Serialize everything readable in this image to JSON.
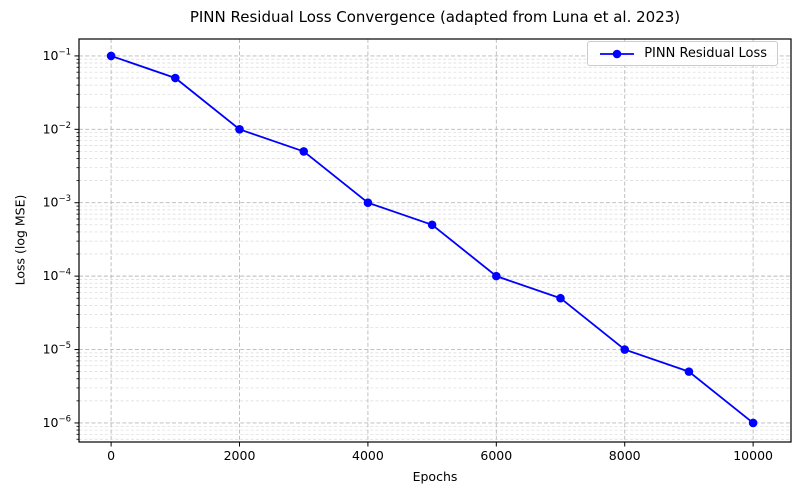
{
  "figure": {
    "background": "#ffffff"
  },
  "chart_data": {
    "type": "line",
    "title": "PINN Residual Loss Convergence (adapted from Luna et al. 2023)",
    "xlabel": "Epochs",
    "ylabel": "Loss (log MSE)",
    "x": [
      0,
      1000,
      2000,
      3000,
      4000,
      5000,
      6000,
      7000,
      8000,
      9000,
      10000
    ],
    "series": [
      {
        "name": "PINN Residual Loss",
        "color": "#0000ff",
        "marker": "circle",
        "values": [
          0.1,
          0.05,
          0.01,
          0.005,
          0.001,
          0.0005,
          0.0001,
          5e-05,
          1e-05,
          5e-06,
          1e-06
        ]
      }
    ],
    "yscale": "log",
    "xlim": [
      -500,
      10590
    ],
    "ylim": [
      5.5e-07,
      0.17
    ],
    "x_ticks": [
      0,
      2000,
      4000,
      6000,
      8000,
      10000
    ],
    "x_tick_labels": [
      "0",
      "2000",
      "4000",
      "6000",
      "8000",
      "10000"
    ],
    "y_tick_exponents": [
      -1,
      -2,
      -3,
      -4,
      -5,
      -6
    ],
    "y_tick_base": "10",
    "grid": {
      "major": true,
      "minor": true,
      "style": "dashed"
    },
    "legend": {
      "label": "PINN Residual Loss",
      "position": "upper right"
    },
    "colors": {
      "line": "#0000ff",
      "grid_major": "#b9b9b9",
      "grid_minor": "#d9d9d9",
      "spine": "#000000",
      "text": "#000000",
      "legend_border": "#cccccc"
    }
  }
}
